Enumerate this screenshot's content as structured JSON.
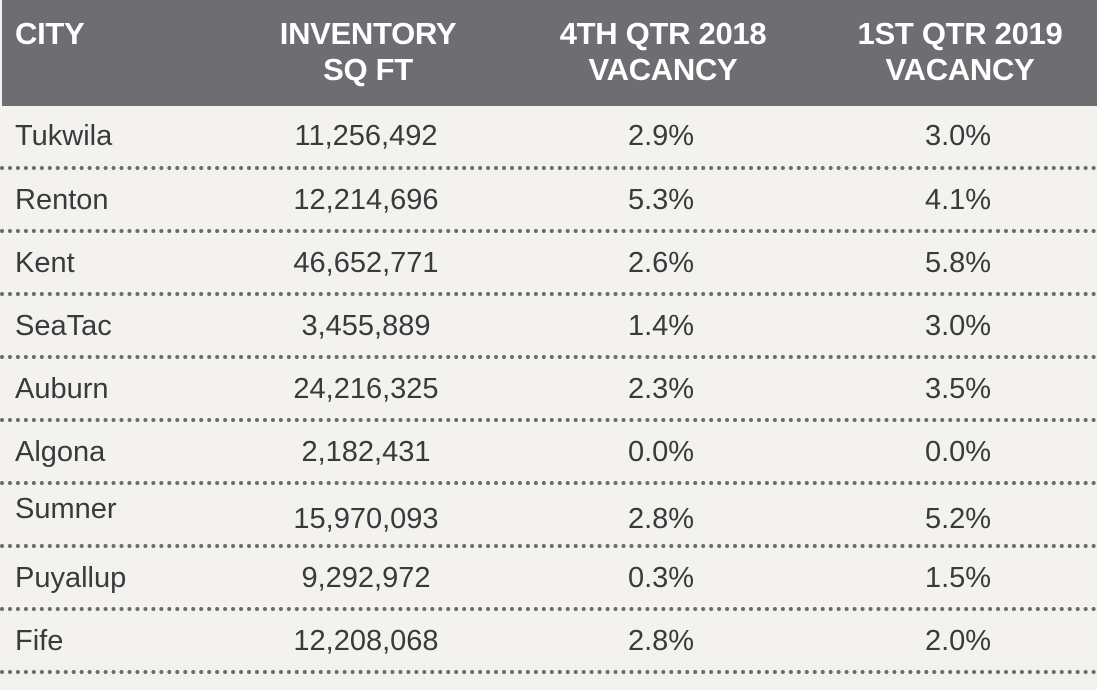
{
  "headers": {
    "city": "CITY",
    "inventory_line1": "INVENTORY",
    "inventory_line2": "SQ FT",
    "q4_line1": "4TH QTR 2018",
    "q4_line2": "VACANCY",
    "q1_line1": "1ST QTR 2019",
    "q1_line2": "VACANCY"
  },
  "rows": [
    {
      "city": "Tukwila",
      "inventory": "11,256,492",
      "q4_2018": "2.9%",
      "q1_2019": "3.0%"
    },
    {
      "city": "Renton",
      "inventory": "12,214,696",
      "q4_2018": "5.3%",
      "q1_2019": "4.1%"
    },
    {
      "city": "Kent",
      "inventory": "46,652,771",
      "q4_2018": "2.6%",
      "q1_2019": "5.8%"
    },
    {
      "city": "SeaTac",
      "inventory": "3,455,889",
      "q4_2018": "1.4%",
      "q1_2019": "3.0%"
    },
    {
      "city": "Auburn",
      "inventory": "24,216,325",
      "q4_2018": "2.3%",
      "q1_2019": "3.5%"
    },
    {
      "city": "Algona",
      "inventory": "2,182,431",
      "q4_2018": "0.0%",
      "q1_2019": "0.0%"
    },
    {
      "city": "Sumner",
      "inventory": "15,970,093",
      "q4_2018": "2.8%",
      "q1_2019": "5.2%"
    },
    {
      "city": "Puyallup",
      "inventory": "9,292,972",
      "q4_2018": "0.3%",
      "q1_2019": "1.5%"
    },
    {
      "city": "Fife",
      "inventory": "12,208,068",
      "q4_2018": "2.8%",
      "q1_2019": "2.0%"
    }
  ],
  "colors": {
    "header_bg": "#6d6d72",
    "header_text": "#ffffff",
    "body_bg": "#f3f2ee",
    "body_text": "#3a3a3c",
    "row_divider": "#6b6b6b"
  }
}
